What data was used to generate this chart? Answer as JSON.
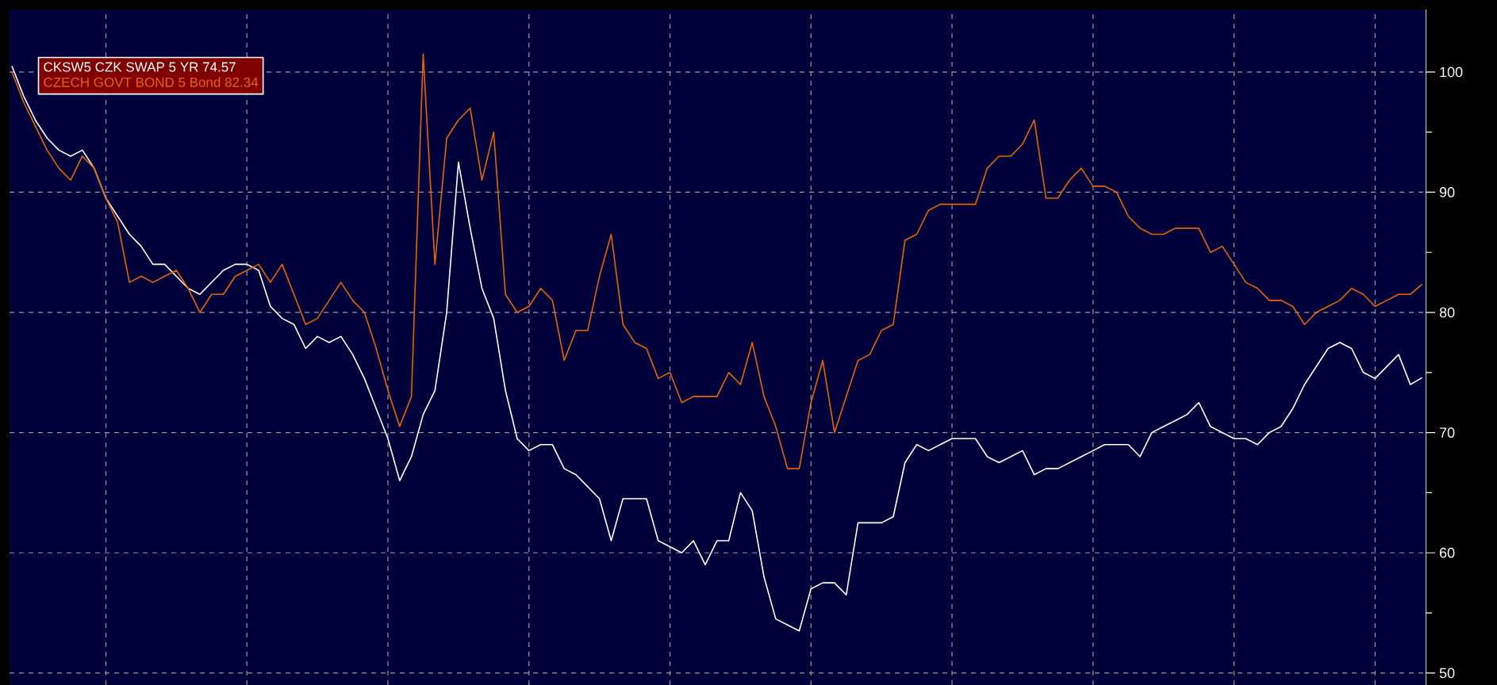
{
  "chart_data": {
    "type": "line",
    "categories": [
      null,
      null,
      null,
      null,
      null,
      null,
      null,
      null,
      null,
      null,
      null,
      null,
      null,
      null,
      null,
      null,
      null,
      null,
      null,
      null,
      null,
      null,
      null,
      null,
      null,
      null,
      null,
      null,
      null,
      null,
      null,
      null,
      null,
      null,
      null,
      null,
      null,
      null,
      null,
      null,
      null,
      null,
      null,
      null,
      null,
      null,
      null,
      null,
      null,
      null,
      null,
      null,
      null,
      null,
      null,
      null,
      null,
      null,
      null,
      null,
      null,
      null,
      null,
      null,
      null,
      null,
      null,
      null,
      null,
      null,
      null,
      null,
      null,
      null,
      null,
      null,
      null,
      null,
      null,
      null,
      null,
      null,
      null,
      null,
      null,
      null,
      null,
      null,
      null,
      null,
      null,
      null,
      null,
      null,
      null,
      null,
      null,
      null,
      null,
      null,
      null,
      null,
      null,
      null,
      null,
      null,
      null,
      null,
      null,
      null,
      null,
      null,
      null,
      null,
      null,
      null,
      null,
      null,
      null,
      null,
      null
    ],
    "series": [
      {
        "name": "CKSW5 CZK SWAP 5 YR 74.57",
        "color": "#ffffff",
        "values": [
          100.5,
          98,
          96,
          94.5,
          93.5,
          93,
          93.5,
          92,
          89.5,
          88,
          86.5,
          85.5,
          84,
          84,
          83,
          82,
          81.5,
          82.5,
          83.5,
          84,
          84,
          83.5,
          80.5,
          79.5,
          79,
          77,
          78,
          77.5,
          78,
          76.5,
          74.5,
          72,
          69.5,
          66,
          68,
          71.5,
          73.5,
          80,
          92.5,
          87,
          82,
          79.5,
          73.5,
          69.5,
          68.5,
          69,
          69,
          67,
          66.5,
          65.5,
          64.5,
          61,
          64.5,
          64.5,
          64.5,
          61,
          60.5,
          60,
          61,
          59,
          61,
          61,
          65,
          63.5,
          58,
          54.5,
          54,
          53.5,
          57,
          57.5,
          57.5,
          56.5,
          62.5,
          62.5,
          62.5,
          63,
          67.5,
          69,
          68.5,
          69,
          69.5,
          69.5,
          69.5,
          68,
          67.5,
          68,
          68.5,
          66.5,
          67,
          67,
          67.5,
          68,
          68.5,
          69,
          69,
          69,
          68,
          70,
          70.5,
          71,
          71.5,
          72.5,
          70.5,
          70,
          69.5,
          69.5,
          69,
          70,
          70.5,
          72,
          74,
          75.5,
          77,
          77.5,
          77,
          75,
          74.5,
          75.5,
          76.5,
          74,
          74.57
        ]
      },
      {
        "name": "CZECH GOVT BOND 5 Bond 82.34",
        "color": "#e8620c",
        "values": [
          100,
          97.5,
          95.5,
          93.5,
          92,
          91,
          93,
          92,
          89.5,
          87.5,
          82.5,
          83,
          82.5,
          83,
          83.5,
          82,
          80,
          81.5,
          81.5,
          83,
          83.5,
          84,
          82.5,
          84,
          81.5,
          79,
          79.5,
          81,
          82.5,
          81,
          80,
          77,
          73.5,
          70.5,
          73,
          101.5,
          84,
          94.5,
          96,
          97,
          91,
          95,
          81.5,
          80,
          80.5,
          82,
          81,
          76,
          78.5,
          78.5,
          83,
          86.5,
          79,
          77.5,
          77,
          74.5,
          75,
          72.5,
          73,
          73,
          73,
          75,
          74,
          77.5,
          73,
          70.5,
          67,
          67,
          72.5,
          76,
          70,
          73,
          76,
          76.5,
          78.5,
          79,
          86,
          86.5,
          88.5,
          89,
          89,
          89,
          89,
          92,
          93,
          93,
          94,
          96,
          89.5,
          89.5,
          91,
          92,
          90.5,
          90.5,
          90,
          88,
          87,
          86.5,
          86.5,
          87,
          87,
          87,
          85,
          85.5,
          84,
          82.5,
          82,
          81,
          81,
          80.5,
          79,
          80,
          80.5,
          81,
          82,
          81.5,
          80.5,
          81,
          81.5,
          81.5,
          82.34
        ]
      }
    ],
    "ylim": [
      49,
      105.2
    ],
    "yticks": [
      50,
      {
        "value": 55,
        "label": null
      },
      60,
      {
        "value": 65,
        "label": null
      },
      70,
      {
        "value": 75,
        "label": null
      },
      80,
      {
        "value": 85,
        "label": null
      },
      90,
      {
        "value": 95,
        "label": null
      },
      100
    ],
    "grid": true,
    "legend": "top left",
    "marker": "none",
    "line_style": "solid"
  }
}
